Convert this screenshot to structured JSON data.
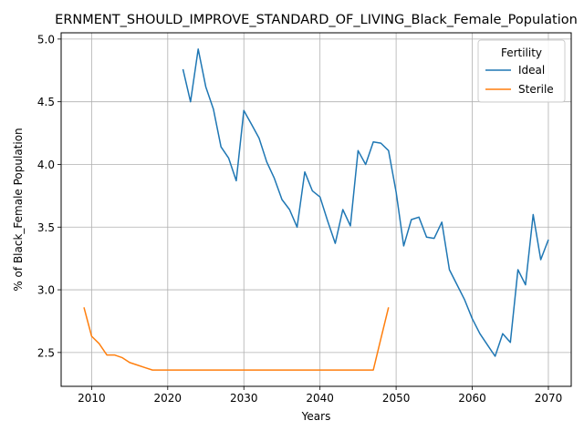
{
  "chart_data": {
    "type": "line",
    "title": "ERNMENT_SHOULD_IMPROVE_STANDARD_OF_LIVING_Black_Female_Population",
    "xlabel": "Years",
    "ylabel": "% of Black_Female Population",
    "xlim": [
      2006,
      2073
    ],
    "ylim": [
      2.23,
      5.05
    ],
    "x_ticks": [
      2010,
      2020,
      2030,
      2040,
      2050,
      2060,
      2070
    ],
    "y_ticks": [
      2.5,
      3.0,
      3.5,
      4.0,
      4.5,
      5.0
    ],
    "x_tick_labels": [
      "2010",
      "2020",
      "2030",
      "2040",
      "2050",
      "2060",
      "2070"
    ],
    "y_tick_labels": [
      "2.5",
      "3.0",
      "3.5",
      "4.0",
      "4.5",
      "5.0"
    ],
    "grid": true,
    "legend": {
      "title": "Fertility",
      "placement": "top-right",
      "entries": [
        "Ideal",
        "Sterile"
      ]
    },
    "series": [
      {
        "name": "Ideal",
        "color": "#1f77b4",
        "x": [
          2022,
          2023,
          2024,
          2025,
          2026,
          2027,
          2028,
          2029,
          2030,
          2031,
          2032,
          2033,
          2034,
          2035,
          2036,
          2037,
          2038,
          2039,
          2040,
          2041,
          2042,
          2043,
          2044,
          2045,
          2046,
          2047,
          2048,
          2049,
          2050,
          2051,
          2052,
          2053,
          2054,
          2055,
          2056,
          2057,
          2058,
          2059,
          2060,
          2061,
          2062,
          2063,
          2064,
          2065,
          2066,
          2067,
          2068,
          2069,
          2070
        ],
        "values": [
          4.76,
          4.5,
          4.92,
          4.62,
          4.44,
          4.14,
          4.05,
          3.87,
          4.43,
          4.32,
          4.21,
          4.02,
          3.89,
          3.72,
          3.64,
          3.5,
          3.94,
          3.79,
          3.74,
          3.55,
          3.37,
          3.64,
          3.51,
          4.11,
          4.0,
          4.18,
          4.17,
          4.11,
          3.78,
          3.35,
          3.56,
          3.58,
          3.42,
          3.41,
          3.54,
          3.16,
          3.04,
          2.92,
          2.77,
          2.65,
          2.56,
          2.47,
          2.65,
          2.58,
          3.16,
          3.04,
          3.6,
          3.24,
          3.4
        ]
      },
      {
        "name": "Sterile",
        "color": "#ff7f0e",
        "x": [
          2009,
          2010,
          2011,
          2012,
          2013,
          2014,
          2015,
          2016,
          2017,
          2018,
          2019,
          2020,
          2021,
          2022,
          2023,
          2024,
          2025,
          2026,
          2027,
          2028,
          2029,
          2030,
          2031,
          2032,
          2033,
          2034,
          2035,
          2036,
          2037,
          2038,
          2039,
          2040,
          2041,
          2042,
          2043,
          2044,
          2045,
          2046,
          2047,
          2048,
          2049
        ],
        "values": [
          2.86,
          2.63,
          2.57,
          2.48,
          2.48,
          2.46,
          2.42,
          2.4,
          2.38,
          2.36,
          2.36,
          2.36,
          2.36,
          2.36,
          2.36,
          2.36,
          2.36,
          2.36,
          2.36,
          2.36,
          2.36,
          2.36,
          2.36,
          2.36,
          2.36,
          2.36,
          2.36,
          2.36,
          2.36,
          2.36,
          2.36,
          2.36,
          2.36,
          2.36,
          2.36,
          2.36,
          2.36,
          2.36,
          2.36,
          2.61,
          2.86
        ]
      }
    ]
  }
}
